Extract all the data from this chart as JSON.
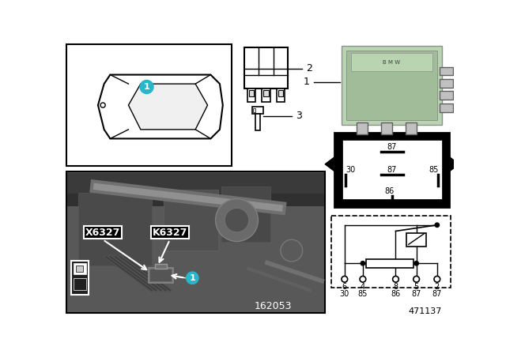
{
  "white": "#ffffff",
  "black": "#000000",
  "teal": "#29b6c8",
  "green_relay": "#b8d4b0",
  "green_relay_dark": "#a0bc98",
  "gray_photo_bg": "#6a6a6a",
  "gray_dark": "#404040",
  "gray_mid": "#888888",
  "footnote": "471137",
  "photo_label": "162053",
  "x6327": "X6327",
  "k6327": "K6327",
  "pin_top": [
    "6",
    "4",
    "8",
    "5",
    "2"
  ],
  "pin_bot": [
    "30",
    "85",
    "86",
    "87",
    "87"
  ]
}
